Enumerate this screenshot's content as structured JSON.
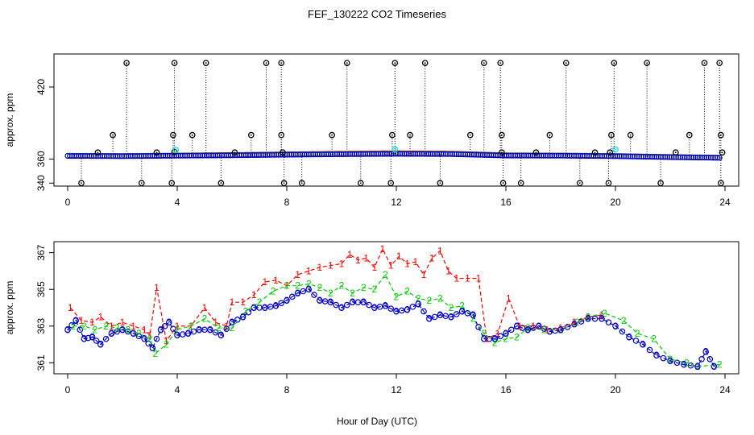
{
  "title": "FEF_130222  CO2 Timeseries",
  "xlabel": "Hour of Day (UTC)",
  "colors": {
    "red": "#ff0000",
    "green": "#00cc00",
    "blue": "#0000cc",
    "cyan": "#00e5e5",
    "black": "#000000"
  },
  "chart_data": [
    {
      "type": "scatter",
      "panel": "top",
      "ylabel": "approx. ppm",
      "xlim": [
        -0.5,
        24.5
      ],
      "ylim": [
        337.5,
        447.5
      ],
      "xticks": [
        0,
        4,
        8,
        12,
        16,
        20,
        24
      ],
      "yticks": [
        340,
        360,
        420
      ],
      "ytick_labels": [
        "340",
        "360",
        "420"
      ],
      "baseline_series": [
        {
          "name": "red",
          "color": "#ff0000",
          "x": [
            0,
            2,
            4,
            6,
            8,
            10,
            12,
            14,
            16,
            18,
            20,
            22,
            23.8
          ],
          "y": [
            362.8,
            362.6,
            363.0,
            363.4,
            364.0,
            364.5,
            364.9,
            364.6,
            363.2,
            363.0,
            362.6,
            361.8,
            361.2
          ]
        },
        {
          "name": "green",
          "color": "#00cc00",
          "x": [
            0,
            2,
            4,
            6,
            8,
            10,
            12,
            14,
            16,
            18,
            20,
            22,
            23.8
          ],
          "y": [
            362.7,
            362.5,
            362.9,
            363.2,
            363.8,
            364.2,
            364.5,
            364.3,
            363.0,
            362.9,
            362.5,
            361.7,
            361.1
          ]
        },
        {
          "name": "blue",
          "color": "#0000cc",
          "x": [
            0,
            2,
            4,
            6,
            8,
            10,
            12,
            14,
            16,
            18,
            20,
            22,
            23.8
          ],
          "y": [
            362.6,
            362.4,
            362.8,
            363.1,
            363.6,
            364.0,
            364.3,
            364.1,
            362.9,
            362.8,
            362.4,
            361.6,
            361.0
          ]
        }
      ],
      "high_spikes": [
        {
          "x": 2.15,
          "y": 440
        },
        {
          "x": 3.9,
          "y": 440
        },
        {
          "x": 5.05,
          "y": 440
        },
        {
          "x": 7.25,
          "y": 440
        },
        {
          "x": 7.8,
          "y": 440
        },
        {
          "x": 10.2,
          "y": 440
        },
        {
          "x": 11.95,
          "y": 440
        },
        {
          "x": 13.05,
          "y": 440
        },
        {
          "x": 15.2,
          "y": 440
        },
        {
          "x": 15.8,
          "y": 440
        },
        {
          "x": 18.2,
          "y": 440
        },
        {
          "x": 19.95,
          "y": 440
        },
        {
          "x": 21.15,
          "y": 440
        },
        {
          "x": 23.25,
          "y": 440
        },
        {
          "x": 23.8,
          "y": 440
        },
        {
          "x": 1.65,
          "y": 380
        },
        {
          "x": 3.85,
          "y": 380
        },
        {
          "x": 4.55,
          "y": 380
        },
        {
          "x": 6.7,
          "y": 380
        },
        {
          "x": 7.8,
          "y": 380
        },
        {
          "x": 9.65,
          "y": 380
        },
        {
          "x": 11.85,
          "y": 380
        },
        {
          "x": 12.5,
          "y": 380
        },
        {
          "x": 14.7,
          "y": 380
        },
        {
          "x": 15.85,
          "y": 380
        },
        {
          "x": 17.6,
          "y": 380
        },
        {
          "x": 19.85,
          "y": 380
        },
        {
          "x": 20.55,
          "y": 380
        },
        {
          "x": 22.7,
          "y": 380
        },
        {
          "x": 23.85,
          "y": 380
        }
      ],
      "low_spikes": [
        {
          "x": 0.5,
          "y": 340
        },
        {
          "x": 2.7,
          "y": 340
        },
        {
          "x": 3.8,
          "y": 340
        },
        {
          "x": 5.6,
          "y": 340
        },
        {
          "x": 7.9,
          "y": 340
        },
        {
          "x": 8.55,
          "y": 340
        },
        {
          "x": 10.7,
          "y": 340
        },
        {
          "x": 11.8,
          "y": 340
        },
        {
          "x": 13.6,
          "y": 340
        },
        {
          "x": 15.9,
          "y": 340
        },
        {
          "x": 16.55,
          "y": 340
        },
        {
          "x": 18.7,
          "y": 340
        },
        {
          "x": 19.75,
          "y": 340
        },
        {
          "x": 21.65,
          "y": 340
        },
        {
          "x": 23.85,
          "y": 340
        }
      ],
      "mid_points": [
        {
          "x": 1.1,
          "y": 365.5
        },
        {
          "x": 3.25,
          "y": 365.5
        },
        {
          "x": 3.9,
          "y": 366.0
        },
        {
          "x": 6.1,
          "y": 365.5
        },
        {
          "x": 7.85,
          "y": 365.5
        },
        {
          "x": 15.85,
          "y": 365.5
        },
        {
          "x": 17.1,
          "y": 365.5
        },
        {
          "x": 19.25,
          "y": 365.5
        },
        {
          "x": 19.8,
          "y": 365.5
        },
        {
          "x": 22.2,
          "y": 365.5
        },
        {
          "x": 23.9,
          "y": 365.5
        }
      ],
      "cyan_points": [
        {
          "x": 3.95,
          "y": 367.5
        },
        {
          "x": 11.95,
          "y": 368.0
        },
        {
          "x": 20.0,
          "y": 368.0
        }
      ]
    },
    {
      "type": "line",
      "panel": "bottom",
      "ylabel": "approx. ppm",
      "xlim": [
        -0.5,
        24.5
      ],
      "ylim": [
        360.4,
        367.6
      ],
      "xticks": [
        0,
        4,
        8,
        12,
        16,
        20,
        24
      ],
      "yticks": [
        361,
        363,
        365,
        367
      ],
      "series": [
        {
          "name": "1",
          "color": "#ff0000",
          "marker": "1",
          "x": [
            0.1,
            0.5,
            0.9,
            1.2,
            1.6,
            2.0,
            2.4,
            2.8,
            3.0,
            3.25,
            3.6,
            4.0,
            4.5,
            5.0,
            5.4,
            5.8,
            6.0,
            6.4,
            6.8,
            7.2,
            7.6,
            8.0,
            8.4,
            8.8,
            9.2,
            9.6,
            10.0,
            10.3,
            10.6,
            10.9,
            11.2,
            11.5,
            11.8,
            12.1,
            12.4,
            12.7,
            13.0,
            13.3,
            13.6,
            13.9,
            14.2,
            14.6,
            15.0,
            15.3,
            15.7,
            16.1,
            16.5,
            17.0,
            17.5,
            18.0,
            18.5,
            19.0,
            19.5
          ],
          "y": [
            364.0,
            363.3,
            363.2,
            363.5,
            363.0,
            363.2,
            363.0,
            362.8,
            362.5,
            365.1,
            362.2,
            363.0,
            363.0,
            364.0,
            363.2,
            363.0,
            364.3,
            364.3,
            364.7,
            365.4,
            365.5,
            365.2,
            365.8,
            366.0,
            366.2,
            366.3,
            366.4,
            366.9,
            366.6,
            366.7,
            366.2,
            367.2,
            366.3,
            366.8,
            366.4,
            366.5,
            365.8,
            366.7,
            367.1,
            366.0,
            365.6,
            365.6,
            365.6,
            362.3,
            362.6,
            364.5,
            363.0,
            363.0,
            362.8,
            362.9,
            363.2,
            363.5,
            363.6
          ]
        },
        {
          "name": "2",
          "color": "#00cc00",
          "marker": "2",
          "x": [
            0.2,
            0.6,
            1.0,
            1.4,
            1.8,
            2.2,
            2.6,
            3.0,
            3.2,
            3.6,
            4.0,
            4.5,
            5.0,
            5.5,
            6.0,
            6.5,
            7.0,
            7.5,
            8.0,
            8.4,
            8.8,
            9.2,
            9.6,
            10.0,
            10.4,
            10.8,
            11.2,
            11.6,
            12.0,
            12.4,
            12.8,
            13.2,
            13.6,
            14.0,
            14.4,
            14.8,
            15.2,
            15.6,
            16.0,
            16.4,
            16.8,
            17.4,
            18.0,
            18.6,
            19.0,
            19.6,
            20.3,
            20.8,
            21.4,
            22.0,
            22.6,
            23.0,
            23.8
          ],
          "y": [
            363.0,
            363.0,
            362.8,
            363.0,
            362.9,
            362.8,
            362.6,
            362.3,
            361.5,
            362.0,
            362.8,
            363.0,
            363.4,
            362.9,
            362.9,
            363.8,
            364.3,
            364.9,
            365.2,
            365.2,
            365.3,
            365.1,
            364.8,
            365.2,
            364.8,
            365.1,
            365.0,
            365.8,
            364.6,
            364.9,
            364.5,
            364.4,
            364.5,
            364.0,
            364.1,
            363.4,
            362.6,
            362.1,
            362.3,
            362.4,
            362.9,
            362.8,
            362.8,
            363.2,
            363.5,
            363.7,
            363.3,
            362.6,
            362.3,
            361.2,
            361.0,
            360.8,
            360.9
          ]
        },
        {
          "name": "3",
          "color": "#0000cc",
          "marker": "3",
          "x": [
            0.0,
            0.3,
            0.6,
            0.9,
            1.2,
            1.6,
            2.0,
            2.4,
            2.8,
            3.1,
            3.4,
            3.7,
            4.0,
            4.4,
            4.8,
            5.2,
            5.6,
            6.0,
            6.4,
            6.8,
            7.2,
            7.6,
            8.0,
            8.4,
            8.8,
            9.2,
            9.6,
            10.0,
            10.4,
            10.8,
            11.2,
            11.6,
            12.0,
            12.4,
            12.8,
            13.2,
            13.6,
            14.0,
            14.4,
            14.8,
            15.2,
            15.6,
            16.0,
            16.4,
            16.8,
            17.2,
            17.6,
            18.0,
            18.5,
            19.0,
            19.5,
            20.0,
            20.5,
            21.0,
            21.5,
            22.0,
            22.5,
            23.0,
            23.3,
            23.6
          ],
          "y": [
            362.8,
            363.3,
            362.3,
            362.4,
            362.0,
            362.6,
            362.8,
            362.6,
            362.3,
            361.8,
            362.8,
            363.2,
            362.5,
            362.6,
            362.8,
            362.8,
            362.5,
            363.2,
            363.5,
            364.0,
            364.0,
            364.1,
            364.4,
            364.8,
            365.0,
            364.4,
            364.3,
            364.0,
            364.3,
            364.3,
            364.0,
            364.1,
            363.8,
            363.9,
            364.2,
            363.4,
            363.6,
            363.5,
            363.8,
            363.6,
            362.3,
            362.3,
            362.6,
            363.0,
            362.8,
            363.0,
            362.7,
            362.8,
            363.1,
            363.4,
            363.4,
            363.0,
            362.4,
            362.0,
            361.4,
            361.1,
            360.9,
            360.8,
            361.6,
            360.8
          ]
        }
      ]
    }
  ]
}
